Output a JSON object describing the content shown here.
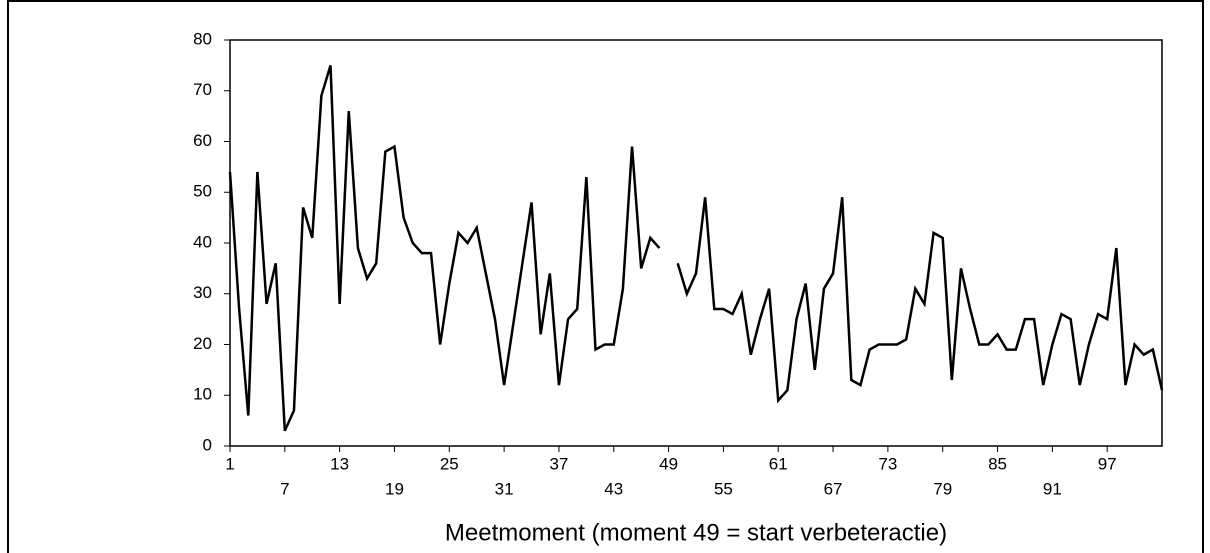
{
  "chart_data": {
    "type": "line",
    "x_label": "Meetmoment (moment 49 = start verbeteractie)",
    "x": [
      1,
      2,
      3,
      4,
      5,
      6,
      7,
      8,
      9,
      10,
      11,
      12,
      13,
      14,
      15,
      16,
      17,
      18,
      19,
      20,
      21,
      22,
      23,
      24,
      25,
      26,
      27,
      28,
      29,
      30,
      31,
      32,
      33,
      34,
      35,
      36,
      37,
      38,
      39,
      40,
      41,
      42,
      43,
      44,
      45,
      46,
      47,
      48,
      49,
      50,
      51,
      52,
      53,
      54,
      55,
      56,
      57,
      58,
      59,
      60,
      61,
      62,
      63,
      64,
      65,
      66,
      67,
      68,
      69,
      70,
      71,
      72,
      73,
      74,
      75,
      76,
      77,
      78,
      79,
      80,
      81,
      82,
      83,
      84,
      85,
      86,
      87,
      88,
      89,
      90,
      91,
      92,
      93,
      94,
      95,
      96,
      97,
      98,
      99,
      100,
      101,
      102,
      103
    ],
    "series": [
      {
        "color": "#000000",
        "values": [
          54,
          27,
          6,
          54,
          28,
          36,
          3,
          7,
          47,
          41,
          69,
          75,
          28,
          66,
          39,
          33,
          36,
          58,
          59,
          45,
          40,
          38,
          38,
          20,
          32,
          42,
          40,
          43,
          34,
          25,
          12,
          24,
          36,
          48,
          22,
          34,
          12,
          25,
          27,
          53,
          19,
          20,
          20,
          31,
          59,
          35,
          41,
          39,
          null,
          36,
          30,
          34,
          49,
          27,
          27,
          26,
          30,
          18,
          25,
          31,
          9,
          11,
          25,
          32,
          15,
          31,
          34,
          49,
          13,
          12,
          19,
          20,
          20,
          20,
          21,
          31,
          28,
          42,
          41,
          13,
          35,
          27,
          20,
          20,
          22,
          19,
          19,
          25,
          25,
          12,
          20,
          26,
          25,
          12,
          20,
          26,
          25,
          39,
          12,
          20,
          18,
          19,
          11
        ]
      }
    ],
    "xlim": [
      1,
      103
    ],
    "xticks": [
      1,
      7,
      13,
      19,
      25,
      31,
      37,
      43,
      49,
      55,
      61,
      67,
      73,
      79,
      85,
      91,
      97
    ],
    "ylim": [
      0,
      80
    ],
    "yticks": [
      0,
      10,
      20,
      30,
      40,
      50,
      60,
      70,
      80
    ]
  }
}
